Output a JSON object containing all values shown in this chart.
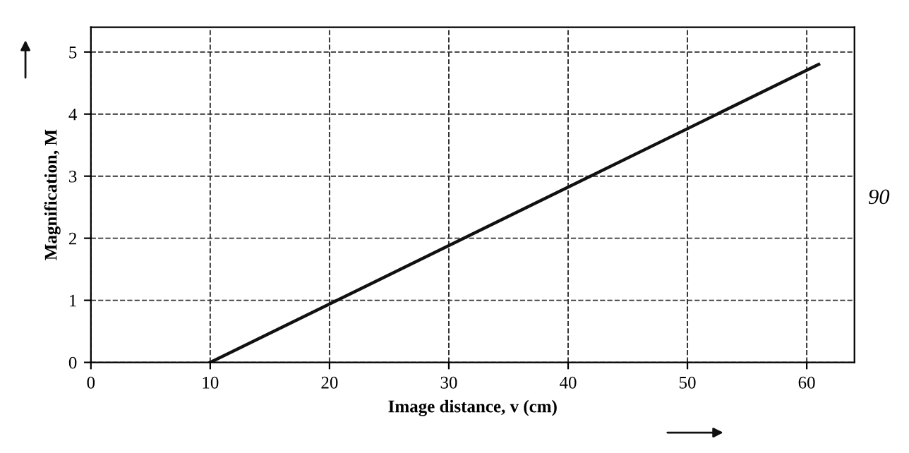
{
  "chart_data": {
    "type": "line",
    "xlabel": "Image distance, v (cm)",
    "ylabel": "Magnification, M",
    "x": [
      10,
      61
    ],
    "series": [
      {
        "color": "#111111",
        "values": [
          0,
          4.8
        ]
      }
    ],
    "xlim": [
      0,
      64
    ],
    "ylim": [
      0,
      5.4
    ],
    "xticks": [
      0,
      10,
      20,
      30,
      40,
      50,
      60
    ],
    "yticks": [
      0,
      1,
      2,
      3,
      4,
      5
    ],
    "grid": true,
    "marker": "none",
    "line_style": "solid",
    "annotations": [
      "90"
    ]
  }
}
